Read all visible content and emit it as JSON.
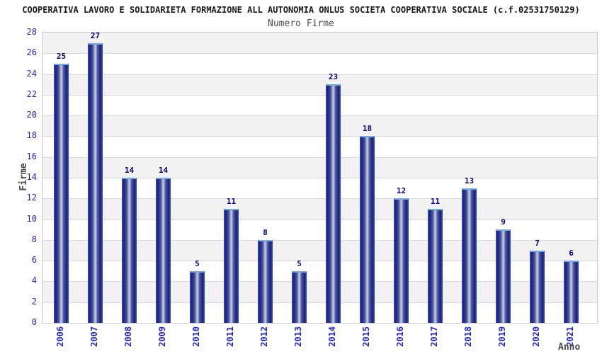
{
  "chart_data": {
    "type": "bar",
    "title": "COOPERATIVA LAVORO E SOLIDARIETA FORMAZIONE ALL AUTONOMIA ONLUS SOCIETA COOPERATIVA SOCIALE (c.f.02531750129)",
    "subtitle": "Numero Firme",
    "xlabel": "Anno",
    "ylabel": "Firme",
    "categories": [
      "2006",
      "2007",
      "2008",
      "2009",
      "2010",
      "2011",
      "2012",
      "2013",
      "2014",
      "2015",
      "2016",
      "2017",
      "2018",
      "2019",
      "2020",
      "2021"
    ],
    "values": [
      25,
      27,
      14,
      14,
      5,
      11,
      8,
      5,
      23,
      18,
      12,
      11,
      13,
      9,
      7,
      6
    ],
    "ylim": [
      0,
      28
    ],
    "ytick_step": 2,
    "grid": true,
    "band_fill": "alternating horizontal bands of 2 units, gray on 2-4, 6-8, 10-12, 14-16, 18-20, 22-24, 26-28",
    "legend": "none",
    "colors": {
      "bar_dark": "#1b2168",
      "bar_light": "#c9d0ea",
      "bar_border": "#2e41c8",
      "bar_top_border": "#74aadf",
      "value_label": "#00007a",
      "axis_tick_label": "#2121c8",
      "band_gray": "#f2f2f2",
      "gridline": "#d9d9d9",
      "plot_border": "#c9c9c9",
      "title_text": "#1a1a1a",
      "axis_title_text": "#4a4a4a"
    }
  }
}
